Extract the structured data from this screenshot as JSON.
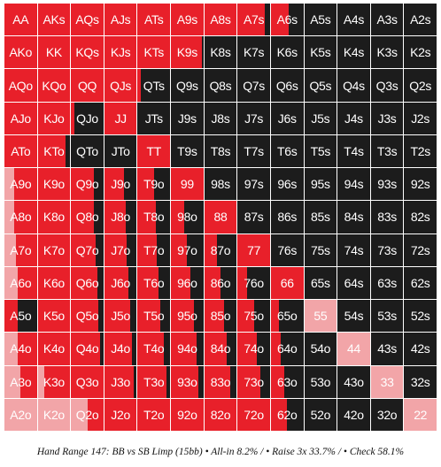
{
  "chart_data": {
    "type": "heatmap",
    "title": "Hand Range 147: BB vs SB Limp (15bb) • All-in 8.2% / • Raise 3x 33.7% / • Check 58.1%",
    "ranks": [
      "A",
      "K",
      "Q",
      "J",
      "T",
      "9",
      "8",
      "7",
      "6",
      "5",
      "4",
      "3",
      "2"
    ],
    "actions": [
      {
        "name": "All-in",
        "percent": 8.2,
        "color": "#f2a5a8"
      },
      {
        "name": "Raise 3x",
        "percent": 33.7,
        "color": "#e8202a"
      },
      {
        "name": "Check",
        "percent": 58.1,
        "color": "#1c1c1c"
      }
    ],
    "hands": [
      [
        "AA",
        "AKs",
        "AQs",
        "AJs",
        "ATs",
        "A9s",
        "A8s",
        "A7s",
        "A6s",
        "A5s",
        "A4s",
        "A3s",
        "A2s"
      ],
      [
        "AKo",
        "KK",
        "KQs",
        "KJs",
        "KTs",
        "K9s",
        "K8s",
        "K7s",
        "K6s",
        "K5s",
        "K4s",
        "K3s",
        "K2s"
      ],
      [
        "AQo",
        "KQo",
        "QQ",
        "QJs",
        "QTs",
        "Q9s",
        "Q8s",
        "Q7s",
        "Q6s",
        "Q5s",
        "Q4s",
        "Q3s",
        "Q2s"
      ],
      [
        "AJo",
        "KJo",
        "QJo",
        "JJ",
        "JTs",
        "J9s",
        "J8s",
        "J7s",
        "J6s",
        "J5s",
        "J4s",
        "J3s",
        "J2s"
      ],
      [
        "ATo",
        "KTo",
        "QTo",
        "JTo",
        "TT",
        "T9s",
        "T8s",
        "T7s",
        "T6s",
        "T5s",
        "T4s",
        "T3s",
        "T2s"
      ],
      [
        "A9o",
        "K9o",
        "Q9o",
        "J9o",
        "T9o",
        "99",
        "98s",
        "97s",
        "96s",
        "95s",
        "94s",
        "93s",
        "92s"
      ],
      [
        "A8o",
        "K8o",
        "Q8o",
        "J8o",
        "T8o",
        "98o",
        "88",
        "87s",
        "86s",
        "85s",
        "84s",
        "83s",
        "82s"
      ],
      [
        "A7o",
        "K7o",
        "Q7o",
        "J7o",
        "T7o",
        "97o",
        "87o",
        "77",
        "76s",
        "75s",
        "74s",
        "73s",
        "72s"
      ],
      [
        "A6o",
        "K6o",
        "Q6o",
        "J6o",
        "T6o",
        "96o",
        "86o",
        "76o",
        "66",
        "65s",
        "64s",
        "63s",
        "62s"
      ],
      [
        "A5o",
        "K5o",
        "Q5o",
        "J5o",
        "T5o",
        "95o",
        "85o",
        "75o",
        "65o",
        "55",
        "54s",
        "53s",
        "52s"
      ],
      [
        "A4o",
        "K4o",
        "Q4o",
        "J4o",
        "T4o",
        "94o",
        "84o",
        "74o",
        "64o",
        "54o",
        "44",
        "43s",
        "42s"
      ],
      [
        "A3o",
        "K3o",
        "Q3o",
        "J3o",
        "T3o",
        "93o",
        "83o",
        "73o",
        "63o",
        "53o",
        "43o",
        "33",
        "32s"
      ],
      [
        "A2o",
        "K2o",
        "Q2o",
        "J2o",
        "T2o",
        "92o",
        "82o",
        "72o",
        "62o",
        "52o",
        "42o",
        "32o",
        "22"
      ]
    ],
    "allin_freq": [
      [
        0,
        0,
        0,
        0,
        0,
        0,
        0,
        0,
        0,
        0,
        0,
        0,
        0
      ],
      [
        0,
        0,
        0,
        0,
        0,
        0,
        0,
        0,
        0,
        0,
        0,
        0,
        0
      ],
      [
        0,
        0,
        0,
        0,
        0,
        0,
        0,
        0,
        0,
        0,
        0,
        0,
        0
      ],
      [
        0,
        0,
        0,
        0,
        0,
        0,
        0,
        0,
        0,
        0,
        0,
        0,
        0
      ],
      [
        0,
        0,
        0,
        0,
        0,
        0,
        0,
        0,
        0,
        0,
        0,
        0,
        0
      ],
      [
        0.3,
        0,
        0,
        0,
        0,
        0,
        0,
        0,
        0,
        0,
        0,
        0,
        0
      ],
      [
        0.3,
        0,
        0,
        0,
        0,
        0,
        0,
        0,
        0,
        0,
        0,
        0,
        0
      ],
      [
        0.35,
        0,
        0,
        0,
        0,
        0,
        0,
        0,
        0,
        0,
        0,
        0,
        0
      ],
      [
        0.4,
        0,
        0,
        0,
        0,
        0,
        0,
        0,
        0,
        0,
        0,
        0,
        0
      ],
      [
        0,
        0,
        0,
        0,
        0,
        0,
        0,
        0,
        0,
        1,
        0,
        0,
        0
      ],
      [
        0.4,
        0,
        0,
        0,
        0,
        0,
        0,
        0,
        0,
        0,
        1,
        0,
        0
      ],
      [
        0.5,
        0.2,
        0,
        0,
        0,
        0,
        0,
        0,
        0,
        0,
        0,
        1,
        0
      ],
      [
        1,
        1,
        0.5,
        0,
        0,
        0,
        0,
        0,
        0,
        0,
        0,
        0,
        1
      ]
    ],
    "raise_freq": [
      [
        1,
        1,
        1,
        1,
        1,
        1,
        1,
        0.85,
        0.55,
        0,
        0,
        0,
        0
      ],
      [
        1,
        1,
        1,
        1,
        1,
        0.95,
        0,
        0,
        0,
        0,
        0,
        0,
        0
      ],
      [
        1,
        1,
        1,
        1,
        0.1,
        0,
        0,
        0,
        0,
        0,
        0,
        0,
        0
      ],
      [
        1,
        1,
        0.1,
        1,
        0,
        0,
        0,
        0,
        0,
        0,
        0,
        0,
        0
      ],
      [
        1,
        0.85,
        0,
        0,
        1,
        0,
        0,
        0,
        0,
        0,
        0,
        0,
        0
      ],
      [
        0.7,
        1,
        0.7,
        0.6,
        0.5,
        1,
        0,
        0,
        0,
        0,
        0,
        0,
        0
      ],
      [
        0.7,
        1,
        0.7,
        0.65,
        0.55,
        0.4,
        1,
        0,
        0,
        0,
        0,
        0,
        0
      ],
      [
        0.65,
        1,
        0.75,
        0.7,
        0.6,
        0.5,
        0.4,
        1,
        0,
        0,
        0,
        0,
        0
      ],
      [
        0.6,
        1,
        0.8,
        0.75,
        0.65,
        0.6,
        0.5,
        0.3,
        1,
        0,
        0,
        0,
        0
      ],
      [
        0.4,
        1,
        0.85,
        0.8,
        0.7,
        0.7,
        0.6,
        0.5,
        0.25,
        0,
        0,
        0,
        0
      ],
      [
        0.6,
        1,
        0.9,
        0.85,
        0.8,
        0.8,
        0.7,
        0.6,
        0.3,
        0,
        0,
        0,
        0
      ],
      [
        0.5,
        0.8,
        1,
        0.9,
        0.9,
        0.85,
        0.8,
        0.7,
        0.4,
        0,
        0,
        0,
        0
      ],
      [
        0,
        0,
        0.5,
        1,
        1,
        1,
        1,
        1,
        0.5,
        0,
        0,
        0,
        0
      ]
    ]
  }
}
